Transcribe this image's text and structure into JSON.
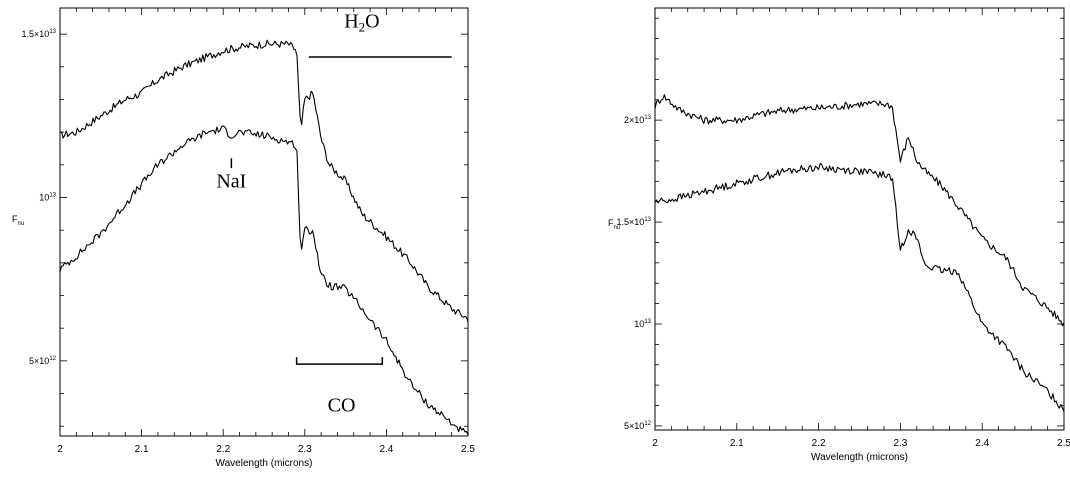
{
  "chart_data": [
    {
      "type": "line",
      "xlabel": "Wavelength (microns)",
      "ylabel": "F_nu",
      "xlim": [
        2.0,
        2.5
      ],
      "ylim": [
        2700000000000.0,
        15800000000000.0
      ],
      "xticks": [
        2,
        2.1,
        2.2,
        2.3,
        2.4,
        2.5
      ],
      "xtick_labels": [
        "2",
        "2.1",
        "2.2",
        "2.3",
        "2.4",
        "2.5"
      ],
      "yticks": [
        5000000000000.0,
        10000000000000.0,
        15000000000000.0
      ],
      "ytick_labels": [
        {
          "mant": "5×10",
          "exp": "12"
        },
        {
          "mant": "10",
          "exp": "13"
        },
        {
          "mant": "1.5×10",
          "exp": "13"
        }
      ],
      "series": [
        {
          "x": [
            2.0,
            2.02,
            2.05,
            2.08,
            2.1,
            2.12,
            2.15,
            2.18,
            2.2,
            2.22,
            2.25,
            2.28,
            2.29,
            2.295,
            2.3,
            2.31,
            2.32,
            2.33,
            2.35,
            2.37,
            2.4,
            2.43,
            2.45,
            2.48,
            2.5
          ],
          "y": [
            11900000000000.0,
            12000000000000.0,
            12500000000000.0,
            13000000000000.0,
            13200000000000.0,
            13600000000000.0,
            14000000000000.0,
            14300000000000.0,
            14500000000000.0,
            14600000000000.0,
            14700000000000.0,
            14700000000000.0,
            14500000000000.0,
            12000000000000.0,
            13000000000000.0,
            13200000000000.0,
            11800000000000.0,
            11000000000000.0,
            10500000000000.0,
            9500000000000.0,
            8800000000000.0,
            8000000000000.0,
            7300000000000.0,
            6600000000000.0,
            6300000000000.0
          ]
        },
        {
          "x": [
            2.0,
            2.02,
            2.05,
            2.08,
            2.1,
            2.12,
            2.15,
            2.18,
            2.2,
            2.21,
            2.22,
            2.25,
            2.28,
            2.29,
            2.295,
            2.3,
            2.31,
            2.32,
            2.33,
            2.35,
            2.37,
            2.4,
            2.43,
            2.45,
            2.48,
            2.5
          ],
          "y": [
            7800000000000.0,
            8200000000000.0,
            8900000000000.0,
            9800000000000.0,
            10400000000000.0,
            11000000000000.0,
            11600000000000.0,
            12000000000000.0,
            12100000000000.0,
            11900000000000.0,
            12000000000000.0,
            11900000000000.0,
            11700000000000.0,
            11600000000000.0,
            8300000000000.0,
            9000000000000.0,
            9000000000000.0,
            7600000000000.0,
            7300000000000.0,
            7200000000000.0,
            6600000000000.0,
            5600000000000.0,
            4300000000000.0,
            3700000000000.0,
            3100000000000.0,
            2700000000000.0
          ]
        }
      ],
      "annotations": [
        {
          "parts": [
            {
              "t": "H",
              "sub": false
            },
            {
              "t": "2",
              "sub": true
            },
            {
              "t": "O",
              "sub": false
            }
          ],
          "x": 2.37,
          "y": 15200000000000.0,
          "bar": {
            "x0": 2.305,
            "x1": 2.48,
            "y": 14300000000000.0
          }
        },
        {
          "parts": [
            {
              "t": "NaI",
              "sub": false
            }
          ],
          "x": 2.21,
          "y": 10300000000000.0,
          "marker": {
            "x": 2.21,
            "y0": 11200000000000.0,
            "y1": 10900000000000.0
          }
        },
        {
          "parts": [
            {
              "t": "CO",
              "sub": false
            }
          ],
          "x": 2.345,
          "y": 3450000000000.0,
          "bracket": {
            "x0": 2.29,
            "x1": 2.395,
            "y": 4900000000000.0
          }
        }
      ]
    },
    {
      "type": "line",
      "xlabel": "Wavelength (microns)",
      "ylabel": "F_nu",
      "xlim": [
        2.0,
        2.5
      ],
      "ylim": [
        4800000000000.0,
        25500000000000.0
      ],
      "xticks": [
        2,
        2.1,
        2.2,
        2.3,
        2.4,
        2.5
      ],
      "xtick_labels": [
        "2",
        "2.1",
        "2.2",
        "2.3",
        "2.4",
        "2.5"
      ],
      "yticks": [
        5000000000000.0,
        10000000000000.0,
        15000000000000.0,
        20000000000000.0
      ],
      "ytick_labels": [
        {
          "mant": "5×10",
          "exp": "12"
        },
        {
          "mant": "10",
          "exp": "13"
        },
        {
          "mant": "1.5×10",
          "exp": "13"
        },
        {
          "mant": "2×10",
          "exp": "13"
        }
      ],
      "series": [
        {
          "x": [
            2.0,
            2.01,
            2.03,
            2.06,
            2.1,
            2.13,
            2.16,
            2.2,
            2.23,
            2.25,
            2.28,
            2.29,
            2.3,
            2.31,
            2.32,
            2.33,
            2.35,
            2.37,
            2.4,
            2.43,
            2.45,
            2.48,
            2.5
          ],
          "y": [
            20700000000000.0,
            21200000000000.0,
            20500000000000.0,
            20000000000000.0,
            20000000000000.0,
            20300000000000.0,
            20500000000000.0,
            20600000000000.0,
            20700000000000.0,
            20800000000000.0,
            20800000000000.0,
            20700000000000.0,
            18000000000000.0,
            19200000000000.0,
            18000000000000.0,
            17500000000000.0,
            16800000000000.0,
            15800000000000.0,
            14200000000000.0,
            13200000000000.0,
            11800000000000.0,
            10800000000000.0,
            10000000000000.0
          ]
        },
        {
          "x": [
            2.0,
            2.02,
            2.05,
            2.08,
            2.1,
            2.13,
            2.16,
            2.18,
            2.2,
            2.22,
            2.25,
            2.28,
            2.29,
            2.3,
            2.31,
            2.32,
            2.33,
            2.35,
            2.37,
            2.4,
            2.43,
            2.45,
            2.48,
            2.5
          ],
          "y": [
            16000000000000.0,
            16100000000000.0,
            16400000000000.0,
            16700000000000.0,
            16900000000000.0,
            17200000000000.0,
            17500000000000.0,
            17600000000000.0,
            17700000000000.0,
            17600000000000.0,
            17500000000000.0,
            17300000000000.0,
            17200000000000.0,
            13600000000000.0,
            14700000000000.0,
            14200000000000.0,
            12900000000000.0,
            12600000000000.0,
            12600000000000.0,
            10000000000000.0,
            8800000000000.0,
            7700000000000.0,
            6700000000000.0,
            5800000000000.0
          ]
        }
      ],
      "annotations": []
    }
  ]
}
